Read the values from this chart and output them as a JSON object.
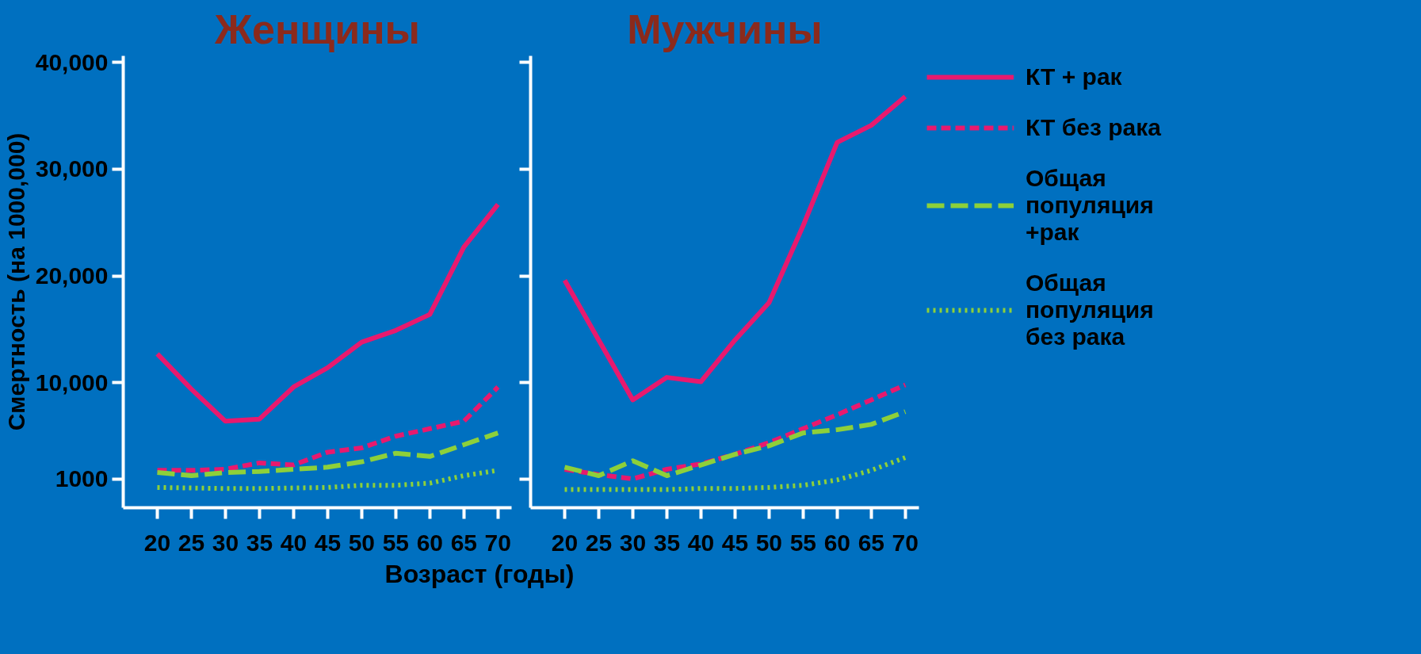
{
  "chart_data": [
    {
      "type": "line",
      "title": "Женщины",
      "xlabel": "Возраст (годы)",
      "ylabel": "Смертность (на 1000,000)",
      "x": [
        20,
        25,
        30,
        35,
        40,
        45,
        50,
        55,
        60,
        65,
        70
      ],
      "xlim": [
        15,
        72
      ],
      "xticks": [
        20,
        25,
        30,
        35,
        40,
        45,
        50,
        55,
        60,
        65,
        70
      ],
      "ylim": [
        -1700,
        40600
      ],
      "yticks": [
        1000,
        {
          "value": 10000,
          "label": "10,000"
        },
        {
          "value": 20000,
          "label": "20,000"
        },
        {
          "value": 30000,
          "label": "30,000"
        },
        {
          "value": 40000,
          "label": "40,000"
        }
      ],
      "grid": false,
      "legend": false,
      "series": [
        {
          "color": "#e8196e",
          "line_style": "solid",
          "values": [
            12700,
            9400,
            6400,
            6600,
            9600,
            11400,
            13800,
            14900,
            16400,
            22700,
            26700
          ]
        },
        {
          "color": "#e8196e",
          "line_style": "dashed",
          "values": [
            1800,
            1800,
            1900,
            2500,
            2300,
            3500,
            3900,
            5000,
            5700,
            6400,
            9600
          ]
        },
        {
          "color": "#8dd03a",
          "line_style": "longdash",
          "values": [
            1600,
            1300,
            1600,
            1700,
            1900,
            2100,
            2600,
            3400,
            3100,
            4200,
            5300
          ]
        },
        {
          "color": "#8dd03a",
          "line_style": "dotted",
          "values": [
            200,
            150,
            100,
            100,
            150,
            200,
            400,
            400,
            600,
            1300,
            1800
          ]
        }
      ]
    },
    {
      "type": "line",
      "title": "Мужчины",
      "x": [
        20,
        25,
        30,
        35,
        40,
        45,
        50,
        55,
        60,
        65,
        70
      ],
      "xlim": [
        15,
        72
      ],
      "xticks": [
        20,
        25,
        30,
        35,
        40,
        45,
        50,
        55,
        60,
        65,
        70
      ],
      "ylim": [
        -1700,
        40600
      ],
      "yticks": [
        1000,
        10000,
        20000,
        30000,
        40000
      ],
      "tick_labels": "x",
      "grid": false,
      "legend": "right",
      "series": [
        {
          "name": "КТ + рак",
          "color": "#e8196e",
          "line_style": "solid",
          "values": [
            19600,
            14000,
            8400,
            10500,
            10100,
            14000,
            17500,
            24700,
            32500,
            34100,
            36800
          ]
        },
        {
          "name": "КТ без рака",
          "color": "#e8196e",
          "line_style": "dashed",
          "values": [
            1900,
            1400,
            1000,
            1900,
            2400,
            3300,
            4400,
            5700,
            7000,
            8400,
            9800
          ]
        },
        {
          "name": "Общая популяция +рак",
          "color": "#8dd03a",
          "line_style": "longdash",
          "values": [
            2100,
            1300,
            2700,
            1300,
            2300,
            3300,
            4100,
            5300,
            5600,
            6100,
            7300
          ]
        },
        {
          "name": "Общая популяция без рака",
          "color": "#8dd03a",
          "line_style": "dotted",
          "values": [
            0,
            0,
            0,
            0,
            100,
            100,
            200,
            400,
            900,
            1800,
            3000
          ]
        }
      ]
    }
  ]
}
